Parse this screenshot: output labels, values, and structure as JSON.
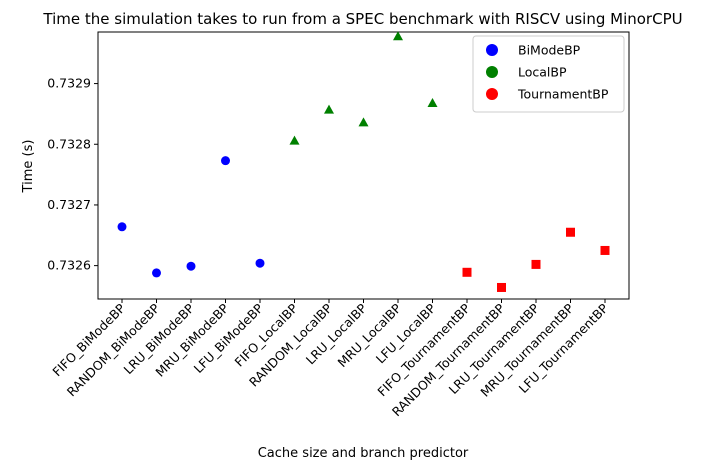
{
  "chart_data": {
    "type": "scatter",
    "title": "Time the simulation takes to run from a SPEC benchmark with RISCV using MinorCPU",
    "xlabel": "Cache size and branch predictor",
    "ylabel": "Time (s)",
    "categories": [
      "FIFO_BiModeBP",
      "RANDOM_BiModeBP",
      "LRU_BiModeBP",
      "MRU_BiModeBP",
      "LFU_BiModeBP",
      "FIFO_LocalBP",
      "RANDOM_LocalBP",
      "LRU_LocalBP",
      "MRU_LocalBP",
      "LFU_LocalBP",
      "FIFO_TournamentBP",
      "RANDOM_TournamentBP",
      "LRU_TournamentBP",
      "MRU_TournamentBP",
      "LFU_TournamentBP"
    ],
    "ylim": [
      0.732545,
      0.732985
    ],
    "yticks": [
      0.7326,
      0.7327,
      0.7328,
      0.7329
    ],
    "ytick_labels": [
      "0.7326",
      "0.7327",
      "0.7328",
      "0.7329"
    ],
    "grid": false,
    "legend_position": "top-right",
    "series": [
      {
        "name": "BiModeBP",
        "color": "#0000ff",
        "marker": "circle",
        "points": [
          {
            "category": "FIFO_BiModeBP",
            "value": 0.732664
          },
          {
            "category": "RANDOM_BiModeBP",
            "value": 0.732588
          },
          {
            "category": "LRU_BiModeBP",
            "value": 0.732599
          },
          {
            "category": "MRU_BiModeBP",
            "value": 0.732773
          },
          {
            "category": "LFU_BiModeBP",
            "value": 0.732604
          }
        ]
      },
      {
        "name": "LocalBP",
        "color": "#008000",
        "marker": "triangle",
        "points": [
          {
            "category": "FIFO_LocalBP",
            "value": 0.732806
          },
          {
            "category": "RANDOM_LocalBP",
            "value": 0.732857
          },
          {
            "category": "LRU_LocalBP",
            "value": 0.732836
          },
          {
            "category": "MRU_LocalBP",
            "value": 0.732978
          },
          {
            "category": "LFU_LocalBP",
            "value": 0.732868
          }
        ]
      },
      {
        "name": "TournamentBP",
        "color": "#ff0000",
        "marker": "square",
        "points": [
          {
            "category": "FIFO_TournamentBP",
            "value": 0.732589
          },
          {
            "category": "RANDOM_TournamentBP",
            "value": 0.732564
          },
          {
            "category": "LRU_TournamentBP",
            "value": 0.732602
          },
          {
            "category": "MRU_TournamentBP",
            "value": 0.732655
          },
          {
            "category": "LFU_TournamentBP",
            "value": 0.732625
          }
        ]
      }
    ]
  }
}
